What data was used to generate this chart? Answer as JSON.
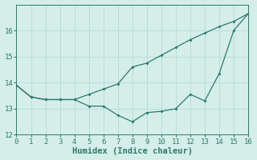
{
  "xlabel": "Humidex (Indice chaleur)",
  "background_color": "#d5eeea",
  "line_color": "#2d7a6a",
  "grid_color": "#b8ddd8",
  "series1_x": [
    0,
    1,
    2,
    3,
    4,
    5,
    6,
    7,
    8,
    9,
    10,
    11,
    12,
    13,
    14,
    15,
    16
  ],
  "series1_y": [
    13.9,
    13.45,
    13.35,
    13.35,
    13.35,
    13.55,
    13.75,
    13.95,
    14.6,
    14.75,
    15.05,
    15.35,
    15.65,
    15.9,
    16.15,
    16.35,
    16.65
  ],
  "series2_x": [
    0,
    1,
    2,
    3,
    4,
    5,
    6,
    7,
    8,
    9,
    10,
    11,
    12,
    13,
    14,
    15,
    16
  ],
  "series2_y": [
    13.9,
    13.45,
    13.35,
    13.35,
    13.35,
    13.1,
    13.1,
    12.75,
    12.5,
    12.85,
    12.9,
    13.0,
    13.55,
    13.3,
    14.35,
    16.0,
    16.65
  ],
  "xlim": [
    0,
    16
  ],
  "ylim": [
    12.0,
    17.0
  ],
  "xticks": [
    0,
    1,
    2,
    3,
    4,
    5,
    6,
    7,
    8,
    9,
    10,
    11,
    12,
    13,
    14,
    15,
    16
  ],
  "yticks": [
    12,
    13,
    14,
    15,
    16
  ],
  "xlabel_fontsize": 7.5,
  "tick_fontsize": 6.5
}
